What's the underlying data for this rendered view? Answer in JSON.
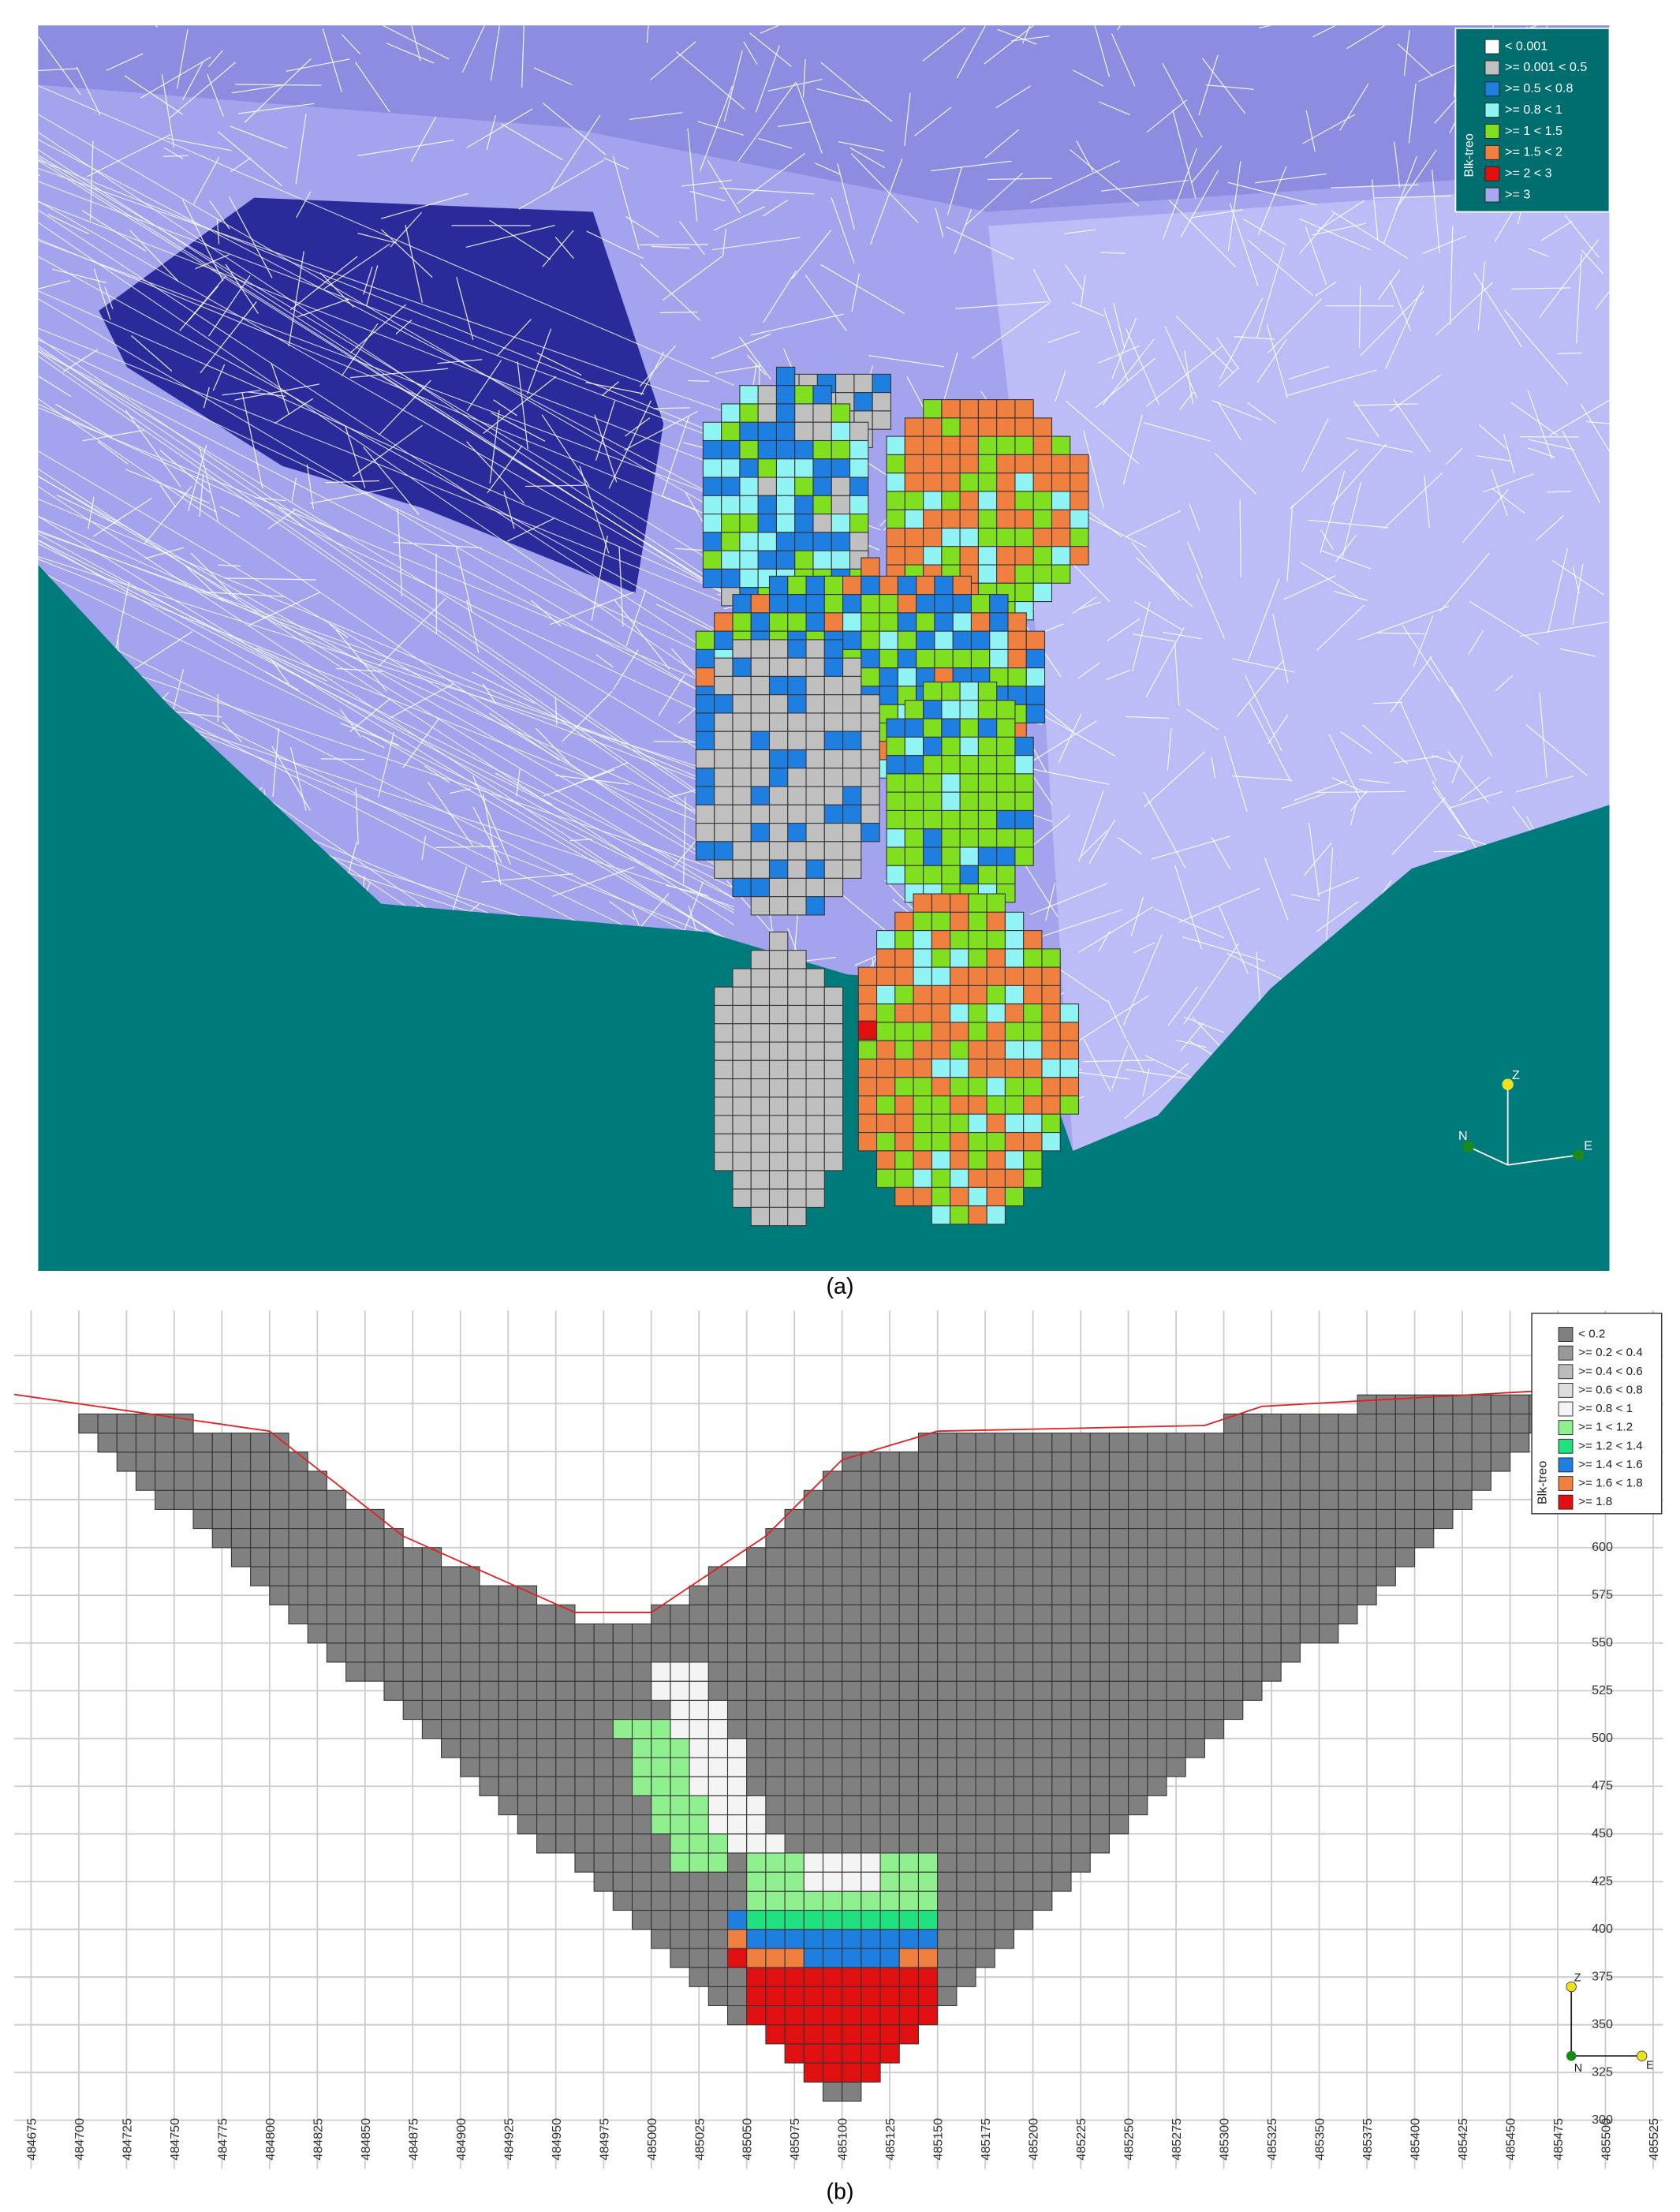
{
  "panel_a": {
    "caption": "(a)",
    "legend": {
      "title": "Blk-treo",
      "items": [
        {
          "label": "< 0.001",
          "color": "#ffffff"
        },
        {
          "label": ">= 0.001  < 0.5",
          "color": "#c0c0c0"
        },
        {
          "label": ">= 0.5  < 0.8",
          "color": "#1e7fe0"
        },
        {
          "label": ">= 0.8  < 1",
          "color": "#90f4f4"
        },
        {
          "label": ">= 1  < 1.5",
          "color": "#80e020"
        },
        {
          "label": ">= 1.5  < 2",
          "color": "#f08040"
        },
        {
          "label": ">= 2  < 3",
          "color": "#e01010"
        },
        {
          "label": ">= 3",
          "color": "#a8a8f0"
        }
      ]
    },
    "axes": {
      "z": "Z",
      "n": "N",
      "e": "E"
    }
  },
  "panel_b": {
    "caption": "(b)",
    "legend": {
      "title": "Blk-treo",
      "items": [
        {
          "label": "< 0.2",
          "color": "#808080"
        },
        {
          "label": ">= 0.2  < 0.4",
          "color": "#999999"
        },
        {
          "label": ">= 0.4  < 0.6",
          "color": "#bbbbbb"
        },
        {
          "label": ">= 0.6  < 0.8",
          "color": "#dddddd"
        },
        {
          "label": ">= 0.8  < 1",
          "color": "#f4f4f4"
        },
        {
          "label": ">= 1  < 1.2",
          "color": "#90f090"
        },
        {
          "label": ">= 1.2  < 1.4",
          "color": "#20e080"
        },
        {
          "label": ">= 1.4  < 1.6",
          "color": "#1e7fe0"
        },
        {
          "label": ">= 1.6  < 1.8",
          "color": "#f08040"
        },
        {
          "label": ">= 1.8",
          "color": "#e01010"
        }
      ]
    },
    "x_ticks": [
      484675,
      484700,
      484725,
      484750,
      484775,
      484800,
      484825,
      484850,
      484875,
      484900,
      484925,
      484950,
      484975,
      485000,
      485025,
      485050,
      485075,
      485100,
      485125,
      485150,
      485175,
      485200,
      485225,
      485250,
      485275,
      485300,
      485325,
      485350,
      485375,
      485400,
      485425,
      485450,
      485475,
      485500,
      485525
    ],
    "y_ticks": [
      300,
      325,
      350,
      375,
      400,
      425,
      450,
      475,
      500,
      525,
      550,
      575,
      600
    ],
    "axes": {
      "z": "Z",
      "n": "N",
      "e": "E"
    }
  }
}
